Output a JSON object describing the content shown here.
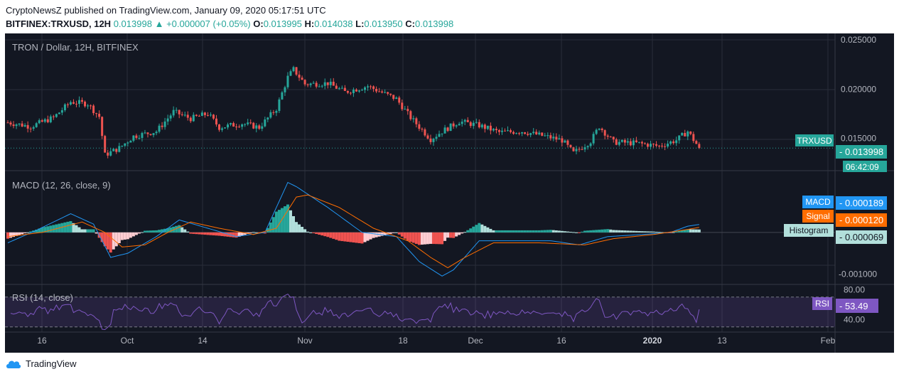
{
  "header": {
    "line1": "CryptoNewsZ published on TradingView.com, January 09, 2020 05:17:51 UTC",
    "symbol": "BITFINEX:TRXUSD, 12H",
    "last": "0.013998",
    "change": "+0.000007 (+0.05%)",
    "o_label": "O:",
    "o": "0.013995",
    "h_label": "H:",
    "h": "0.014038",
    "l_label": "L:",
    "l": "0.013950",
    "c_label": "C:",
    "c": "0.013998"
  },
  "footer": {
    "brand": "TradingView"
  },
  "colors": {
    "background": "#131722",
    "grid": "#2a2e39",
    "up": "#26a69a",
    "down": "#ef5350",
    "macd": "#2196f3",
    "signal": "#ff6d00",
    "rsi": "#7e57c2",
    "text": "#b2b5be"
  },
  "chart_data": [
    {
      "type": "candlestick",
      "title": "TRON / Dollar, 12H, BITFINEX",
      "yticks": [
        "0.025000",
        "0.020000",
        "0.015000"
      ],
      "ylim": [
        0.0117,
        0.0253
      ],
      "symbol_label": "TRXUSD",
      "last_price_label": "0.013998",
      "countdown_label": "06:42:09",
      "last_price": 0.013998,
      "xticks": [
        "16",
        "Oct",
        "14",
        "Nov",
        "18",
        "Dec",
        "16",
        "2020",
        "13",
        "Feb"
      ],
      "anchors": [
        {
          "d": 0,
          "v": 0.0166
        },
        {
          "d": 8,
          "v": 0.0162
        },
        {
          "d": 16,
          "v": 0.0171
        },
        {
          "d": 22,
          "v": 0.0187
        },
        {
          "d": 28,
          "v": 0.0185
        },
        {
          "d": 32,
          "v": 0.0172
        },
        {
          "d": 34,
          "v": 0.0133
        },
        {
          "d": 39,
          "v": 0.014
        },
        {
          "d": 44,
          "v": 0.0152
        },
        {
          "d": 52,
          "v": 0.0157
        },
        {
          "d": 58,
          "v": 0.0177
        },
        {
          "d": 64,
          "v": 0.017
        },
        {
          "d": 70,
          "v": 0.0175
        },
        {
          "d": 74,
          "v": 0.0161
        },
        {
          "d": 82,
          "v": 0.0165
        },
        {
          "d": 88,
          "v": 0.0161
        },
        {
          "d": 94,
          "v": 0.018
        },
        {
          "d": 98,
          "v": 0.0212
        },
        {
          "d": 100,
          "v": 0.022
        },
        {
          "d": 104,
          "v": 0.0205
        },
        {
          "d": 112,
          "v": 0.0206
        },
        {
          "d": 118,
          "v": 0.0197
        },
        {
          "d": 126,
          "v": 0.0203
        },
        {
          "d": 136,
          "v": 0.019
        },
        {
          "d": 141,
          "v": 0.0171
        },
        {
          "d": 148,
          "v": 0.0149
        },
        {
          "d": 152,
          "v": 0.0157
        },
        {
          "d": 158,
          "v": 0.0167
        },
        {
          "d": 165,
          "v": 0.0163
        },
        {
          "d": 172,
          "v": 0.0156
        },
        {
          "d": 180,
          "v": 0.0157
        },
        {
          "d": 188,
          "v": 0.0152
        },
        {
          "d": 194,
          "v": 0.0148
        },
        {
          "d": 198,
          "v": 0.0135
        },
        {
          "d": 204,
          "v": 0.0147
        },
        {
          "d": 207,
          "v": 0.0162
        },
        {
          "d": 212,
          "v": 0.0146
        },
        {
          "d": 220,
          "v": 0.0145
        },
        {
          "d": 228,
          "v": 0.0142
        },
        {
          "d": 234,
          "v": 0.0148
        },
        {
          "d": 238,
          "v": 0.0157
        },
        {
          "d": 242,
          "v": 0.014
        }
      ]
    },
    {
      "type": "line",
      "title": "MACD (12, 26, close, 9)",
      "series": [
        {
          "name": "MACD",
          "value_label": "0.000189",
          "anchors": [
            {
              "d": 0,
              "v": -0.00025
            },
            {
              "d": 10,
              "v": 5e-05
            },
            {
              "d": 22,
              "v": 0.00045
            },
            {
              "d": 30,
              "v": 0.0002
            },
            {
              "d": 36,
              "v": -0.0006
            },
            {
              "d": 42,
              "v": -0.0005
            },
            {
              "d": 52,
              "v": -0.0001
            },
            {
              "d": 60,
              "v": 0.0003
            },
            {
              "d": 70,
              "v": 0.0001
            },
            {
              "d": 80,
              "v": -0.0001
            },
            {
              "d": 90,
              "v": 0.0
            },
            {
              "d": 98,
              "v": 0.0012
            },
            {
              "d": 101,
              "v": 0.0011
            },
            {
              "d": 112,
              "v": 0.0006
            },
            {
              "d": 124,
              "v": 0.0
            },
            {
              "d": 136,
              "v": -0.0001
            },
            {
              "d": 144,
              "v": -0.0007
            },
            {
              "d": 152,
              "v": -0.00105
            },
            {
              "d": 156,
              "v": -0.0009
            },
            {
              "d": 165,
              "v": -0.0002
            },
            {
              "d": 176,
              "v": -0.0002
            },
            {
              "d": 190,
              "v": -0.0002
            },
            {
              "d": 200,
              "v": -0.0003
            },
            {
              "d": 210,
              "v": -0.0001
            },
            {
              "d": 222,
              "v": -5e-05
            },
            {
              "d": 232,
              "v": 0.0
            },
            {
              "d": 238,
              "v": 0.00015
            },
            {
              "d": 242,
              "v": 0.00019
            }
          ]
        },
        {
          "name": "Signal",
          "value_label": "0.000120",
          "anchors": [
            {
              "d": 0,
              "v": -0.0001
            },
            {
              "d": 12,
              "v": 0.0
            },
            {
              "d": 26,
              "v": 0.00025
            },
            {
              "d": 34,
              "v": 0.0
            },
            {
              "d": 40,
              "v": -0.00035
            },
            {
              "d": 48,
              "v": -0.0003
            },
            {
              "d": 56,
              "v": 0.0
            },
            {
              "d": 64,
              "v": 0.00025
            },
            {
              "d": 74,
              "v": 0.0001
            },
            {
              "d": 86,
              "v": -5e-05
            },
            {
              "d": 94,
              "v": 0.0001
            },
            {
              "d": 101,
              "v": 0.00085
            },
            {
              "d": 105,
              "v": 0.0009
            },
            {
              "d": 116,
              "v": 0.0006
            },
            {
              "d": 128,
              "v": 0.0001
            },
            {
              "d": 140,
              "v": -0.0002
            },
            {
              "d": 148,
              "v": -0.0006
            },
            {
              "d": 154,
              "v": -0.00085
            },
            {
              "d": 160,
              "v": -0.0006
            },
            {
              "d": 170,
              "v": -0.00025
            },
            {
              "d": 186,
              "v": -0.00025
            },
            {
              "d": 202,
              "v": -0.0003
            },
            {
              "d": 212,
              "v": -0.00015
            },
            {
              "d": 226,
              "v": -5e-05
            },
            {
              "d": 236,
              "v": 5e-05
            },
            {
              "d": 242,
              "v": 0.00012
            }
          ]
        },
        {
          "name": "Histogram",
          "value_label": "0.000069"
        }
      ],
      "yticks": [
        "-0.001000"
      ],
      "ylim": [
        -0.00125,
        0.00145
      ]
    },
    {
      "type": "line",
      "title": "RSI (14, close)",
      "series": [
        {
          "name": "RSI",
          "value_label": "53.49",
          "last": 53.49
        }
      ],
      "yticks": [
        "80.00",
        "40.00"
      ],
      "bands": [
        70,
        30
      ],
      "ylim": [
        25,
        85
      ]
    }
  ]
}
